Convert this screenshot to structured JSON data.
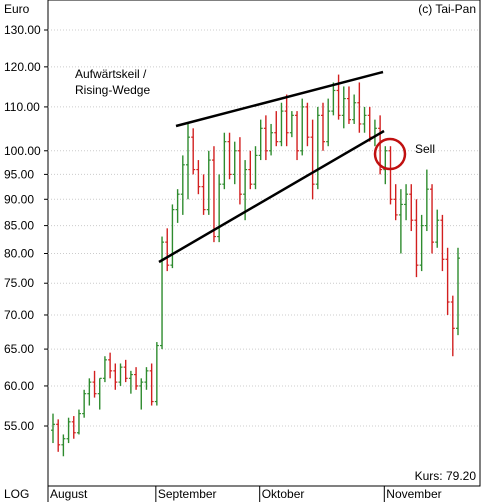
{
  "header": {
    "currency_label": "Euro",
    "copyright": "(c) Tai-Pan"
  },
  "footer": {
    "scale_label": "LOG",
    "price_label": "Kurs:  79.20"
  },
  "annotations": {
    "pattern_title_line1": "Aufwärtskeil /",
    "pattern_title_line2": "Rising-Wedge",
    "signal_label": "Sell"
  },
  "colors": {
    "up_bar": "#2e8b2e",
    "down_bar": "#d21f1f",
    "trendline": "#000000",
    "sell_circle": "#c01010",
    "grid": "#cccccc"
  },
  "chart_data": {
    "type": "ohlc",
    "scale": "log",
    "grid": true,
    "ylim": [
      50,
      135
    ],
    "yticks": [
      "130.00",
      "120.00",
      "110.00",
      "100.00",
      "95.00",
      "90.00",
      "85.00",
      "80.00",
      "75.00",
      "70.00",
      "65.00",
      "60.00",
      "55.00"
    ],
    "ytick_values": [
      130,
      120,
      110,
      100,
      95,
      90,
      85,
      80,
      75,
      70,
      65,
      60,
      55
    ],
    "months": [
      "August",
      "September",
      "Oktober",
      "November"
    ],
    "month_start_index": [
      0,
      20,
      40,
      64
    ],
    "last_close": 79.2,
    "bars": [
      [
        54.5,
        56.5,
        53.0,
        55.2
      ],
      [
        55.2,
        55.8,
        52.0,
        52.8
      ],
      [
        52.8,
        54.0,
        51.5,
        53.5
      ],
      [
        53.5,
        56.0,
        53.0,
        55.5
      ],
      [
        55.5,
        56.2,
        53.5,
        54.2
      ],
      [
        54.2,
        57.0,
        54.0,
        56.5
      ],
      [
        56.5,
        59.5,
        56.0,
        59.0
      ],
      [
        59.0,
        61.0,
        57.5,
        60.5
      ],
      [
        60.5,
        62.0,
        58.5,
        59.0
      ],
      [
        59.0,
        61.0,
        57.0,
        61.0
      ],
      [
        61.0,
        64.0,
        60.5,
        63.5
      ],
      [
        63.5,
        64.5,
        61.0,
        62.0
      ],
      [
        62.0,
        63.0,
        59.5,
        60.5
      ],
      [
        60.5,
        63.0,
        60.0,
        62.5
      ],
      [
        62.5,
        63.5,
        60.5,
        61.0
      ],
      [
        61.0,
        62.0,
        59.0,
        61.5
      ],
      [
        61.5,
        62.5,
        59.5,
        60.0
      ],
      [
        60.0,
        61.0,
        57.0,
        60.5
      ],
      [
        60.5,
        62.5,
        59.5,
        62.0
      ],
      [
        62.0,
        63.0,
        57.5,
        58.0
      ],
      [
        58.0,
        66.0,
        57.5,
        65.5
      ],
      [
        65.5,
        83.0,
        65.0,
        82.0
      ],
      [
        82.0,
        84.5,
        77.0,
        78.0
      ],
      [
        78.0,
        89.0,
        77.5,
        88.0
      ],
      [
        88.0,
        92.0,
        85.5,
        91.0
      ],
      [
        91.0,
        99.0,
        87.0,
        97.0
      ],
      [
        97.0,
        106.0,
        90.0,
        103.0
      ],
      [
        103.0,
        105.0,
        95.0,
        96.0
      ],
      [
        96.0,
        98.0,
        91.0,
        92.5
      ],
      [
        92.5,
        95.0,
        87.0,
        88.0
      ],
      [
        88.0,
        100.0,
        87.0,
        98.0
      ],
      [
        98.0,
        101.0,
        82.0,
        83.0
      ],
      [
        83.0,
        95.0,
        82.0,
        93.0
      ],
      [
        93.0,
        104.0,
        92.0,
        102.0
      ],
      [
        102.0,
        104.0,
        94.0,
        95.0
      ],
      [
        95.0,
        102.0,
        93.0,
        100.0
      ],
      [
        100.0,
        103.0,
        89.0,
        91.0
      ],
      [
        91.0,
        98.0,
        86.0,
        96.0
      ],
      [
        96.0,
        100.0,
        92.0,
        93.0
      ],
      [
        93.0,
        101.0,
        92.0,
        99.0
      ],
      [
        99.0,
        107.0,
        98.0,
        105.0
      ],
      [
        105.0,
        108.0,
        98.0,
        100.0
      ],
      [
        100.0,
        106.0,
        99.0,
        104.0
      ],
      [
        104.0,
        109.0,
        101.0,
        102.0
      ],
      [
        102.0,
        111.0,
        101.0,
        109.0
      ],
      [
        109.0,
        113.0,
        101.0,
        104.0
      ],
      [
        104.0,
        109.0,
        103.0,
        108.0
      ],
      [
        108.0,
        109.0,
        98.0,
        100.0
      ],
      [
        100.0,
        112.0,
        99.0,
        110.0
      ],
      [
        110.0,
        111.0,
        101.0,
        103.0
      ],
      [
        103.0,
        107.0,
        90.0,
        93.0
      ],
      [
        93.0,
        110.0,
        92.0,
        108.0
      ],
      [
        108.0,
        111.0,
        100.0,
        102.0
      ],
      [
        102.0,
        112.0,
        101.0,
        109.0
      ],
      [
        109.0,
        116.0,
        108.0,
        114.0
      ],
      [
        114.0,
        118.0,
        107.0,
        108.0
      ],
      [
        108.0,
        115.0,
        105.0,
        112.0
      ],
      [
        112.0,
        115.0,
        106.0,
        107.0
      ],
      [
        107.0,
        113.0,
        106.0,
        111.0
      ],
      [
        111.0,
        116.0,
        104.0,
        106.0
      ],
      [
        106.0,
        110.0,
        104.0,
        108.0
      ],
      [
        108.0,
        110.0,
        102.0,
        103.0
      ],
      [
        103.0,
        107.0,
        101.0,
        105.0
      ],
      [
        105.0,
        108.0,
        95.0,
        96.0
      ],
      [
        96.0,
        101.0,
        93.0,
        100.0
      ],
      [
        100.0,
        101.0,
        89.0,
        90.0
      ],
      [
        90.0,
        93.0,
        86.0,
        87.0
      ],
      [
        87.0,
        92.0,
        80.0,
        89.0
      ],
      [
        89.0,
        93.0,
        86.0,
        91.0
      ],
      [
        91.0,
        93.0,
        84.0,
        86.0
      ],
      [
        86.0,
        90.0,
        76.0,
        78.0
      ],
      [
        78.0,
        87.0,
        77.0,
        85.0
      ],
      [
        85.0,
        96.0,
        84.0,
        92.0
      ],
      [
        92.0,
        93.0,
        80.0,
        82.0
      ],
      [
        82.0,
        88.0,
        81.0,
        86.0
      ],
      [
        86.0,
        87.0,
        77.0,
        79.0
      ],
      [
        79.0,
        81.0,
        70.0,
        72.0
      ],
      [
        72.0,
        73.0,
        64.0,
        68.0
      ],
      [
        68.0,
        81.0,
        67.0,
        79.2
      ]
    ]
  }
}
